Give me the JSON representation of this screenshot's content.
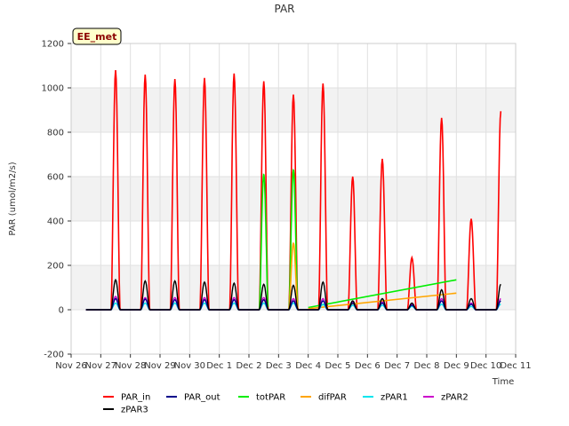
{
  "chart_data": {
    "type": "line",
    "title": "PAR",
    "xlabel": "Time",
    "ylabel": "PAR (umol/m2/s)",
    "badge": "EE_met",
    "ylim": [
      -200,
      1200
    ],
    "yticks": [
      -200,
      0,
      200,
      400,
      600,
      800,
      1000,
      1200
    ],
    "xlim": [
      0,
      15
    ],
    "xticks": [
      {
        "pos": 0,
        "label": "Nov 26"
      },
      {
        "pos": 1,
        "label": "Nov 27"
      },
      {
        "pos": 2,
        "label": "Nov 28"
      },
      {
        "pos": 3,
        "label": "Nov 29"
      },
      {
        "pos": 4,
        "label": "Nov 30"
      },
      {
        "pos": 5,
        "label": "Dec 1"
      },
      {
        "pos": 6,
        "label": "Dec 2"
      },
      {
        "pos": 7,
        "label": "Dec 3"
      },
      {
        "pos": 8,
        "label": "Dec 4"
      },
      {
        "pos": 9,
        "label": "Dec 5"
      },
      {
        "pos": 10,
        "label": "Dec 6"
      },
      {
        "pos": 11,
        "label": "Dec 7"
      },
      {
        "pos": 12,
        "label": "Dec 8"
      },
      {
        "pos": 13,
        "label": "Dec 9"
      },
      {
        "pos": 14,
        "label": "Dec 10"
      },
      {
        "pos": 15,
        "label": "Dec 11"
      }
    ],
    "series": [
      {
        "name": "PAR_in",
        "color": "#ff0000",
        "peaks": [
          {
            "day": 0,
            "v": 1080
          },
          {
            "day": 1,
            "v": 1060
          },
          {
            "day": 2,
            "v": 1040
          },
          {
            "day": 3,
            "v": 1045
          },
          {
            "day": 4,
            "v": 1065
          },
          {
            "day": 5,
            "v": 1030
          },
          {
            "day": 6,
            "v": 970
          },
          {
            "day": 7,
            "v": 1020
          },
          {
            "day": 8,
            "v": 600
          },
          {
            "day": 9,
            "v": 680
          },
          {
            "day": 10,
            "v": 235
          },
          {
            "day": 11,
            "v": 865
          },
          {
            "day": 12,
            "v": 410
          },
          {
            "day": 13,
            "v": 895
          }
        ]
      },
      {
        "name": "PAR_out",
        "color": "#00008b",
        "peaks": [
          {
            "day": 0,
            "v": 50
          },
          {
            "day": 1,
            "v": 48
          },
          {
            "day": 2,
            "v": 45
          },
          {
            "day": 3,
            "v": 45
          },
          {
            "day": 4,
            "v": 45
          },
          {
            "day": 5,
            "v": 45
          },
          {
            "day": 6,
            "v": 40
          },
          {
            "day": 7,
            "v": 40
          },
          {
            "day": 8,
            "v": 30
          },
          {
            "day": 9,
            "v": 30
          },
          {
            "day": 10,
            "v": 20
          },
          {
            "day": 11,
            "v": 40
          },
          {
            "day": 12,
            "v": 25
          },
          {
            "day": 13,
            "v": 40
          }
        ]
      },
      {
        "name": "totPAR",
        "color": "#00ee00",
        "peaks": [
          {
            "day": 5,
            "v": 610
          },
          {
            "day": 6,
            "v": 630
          }
        ],
        "trend": [
          [
            7.0,
            10
          ],
          [
            12.0,
            135
          ]
        ]
      },
      {
        "name": "difPAR",
        "color": "#ffa500",
        "peaks": [
          {
            "day": 5,
            "v": 45
          },
          {
            "day": 6,
            "v": 300
          }
        ],
        "trend": [
          [
            7.0,
            5
          ],
          [
            12.0,
            75
          ]
        ]
      },
      {
        "name": "zPAR1",
        "color": "#00e5ee",
        "peaks": [
          {
            "day": 0,
            "v": 30
          },
          {
            "day": 1,
            "v": 30
          },
          {
            "day": 2,
            "v": 30
          },
          {
            "day": 3,
            "v": 30
          },
          {
            "day": 4,
            "v": 30
          },
          {
            "day": 5,
            "v": 30
          },
          {
            "day": 6,
            "v": 30
          },
          {
            "day": 7,
            "v": 25
          },
          {
            "day": 8,
            "v": 20
          },
          {
            "day": 9,
            "v": 20
          },
          {
            "day": 10,
            "v": 15
          },
          {
            "day": 11,
            "v": 25
          },
          {
            "day": 12,
            "v": 15
          },
          {
            "day": 13,
            "v": 25
          }
        ]
      },
      {
        "name": "zPAR2",
        "color": "#cc00cc",
        "peaks": [
          {
            "day": 0,
            "v": 60
          },
          {
            "day": 1,
            "v": 55
          },
          {
            "day": 2,
            "v": 55
          },
          {
            "day": 3,
            "v": 55
          },
          {
            "day": 4,
            "v": 55
          },
          {
            "day": 5,
            "v": 55
          },
          {
            "day": 6,
            "v": 50
          },
          {
            "day": 7,
            "v": 50
          },
          {
            "day": 8,
            "v": 35
          },
          {
            "day": 9,
            "v": 35
          },
          {
            "day": 10,
            "v": 25
          },
          {
            "day": 11,
            "v": 50
          },
          {
            "day": 12,
            "v": 30
          },
          {
            "day": 13,
            "v": 50
          }
        ]
      },
      {
        "name": "zPAR3",
        "color": "#000000",
        "peaks": [
          {
            "day": 0,
            "v": 135
          },
          {
            "day": 1,
            "v": 130
          },
          {
            "day": 2,
            "v": 130
          },
          {
            "day": 3,
            "v": 125
          },
          {
            "day": 4,
            "v": 120
          },
          {
            "day": 5,
            "v": 115
          },
          {
            "day": 6,
            "v": 110
          },
          {
            "day": 7,
            "v": 125
          },
          {
            "day": 8,
            "v": 40
          },
          {
            "day": 9,
            "v": 50
          },
          {
            "day": 10,
            "v": 30
          },
          {
            "day": 11,
            "v": 90
          },
          {
            "day": 12,
            "v": 50
          },
          {
            "day": 13,
            "v": 115
          }
        ]
      }
    ],
    "legend": [
      "PAR_in",
      "PAR_out",
      "totPAR",
      "difPAR",
      "zPAR1",
      "zPAR2",
      "zPAR3"
    ]
  }
}
